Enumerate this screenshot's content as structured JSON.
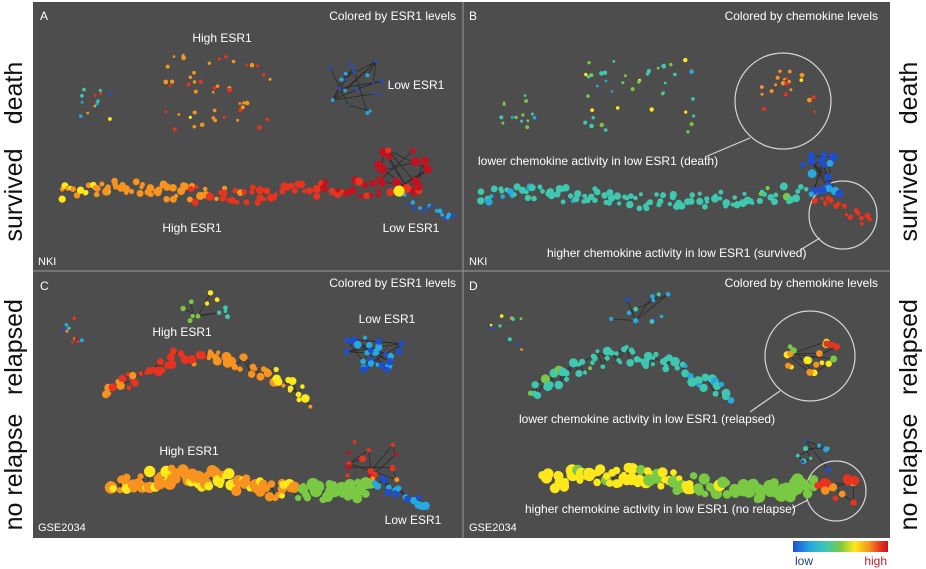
{
  "panels": [
    {
      "letter": "A",
      "caption": "Colored by ESR1 levels",
      "annotations": [
        "High ESR1",
        "Low ESR1",
        "High ESR1",
        "Low ESR1"
      ],
      "dataset": "NKI"
    },
    {
      "letter": "B",
      "caption": "Colored by chemokine levels",
      "annotations": [
        "lower chemokine activity in low ESR1 (death)",
        "higher chemokine activity in low ESR1 (survived)"
      ],
      "dataset": "NKI"
    },
    {
      "letter": "C",
      "caption": "Colored by ESR1 levels",
      "annotations": [
        "High ESR1",
        "Low ESR1",
        "High ESR1",
        "Low ESR1"
      ],
      "dataset": "GSE2034"
    },
    {
      "letter": "D",
      "caption": "Colored by chemokine levels",
      "annotations": [
        "lower chemokine activity in low ESR1 (relapsed)",
        "higher chemokine activity in low ESR1 (no relapse)"
      ],
      "dataset": "GSE2034"
    }
  ],
  "row_labels": {
    "left": [
      "death",
      "survived",
      "relapsed",
      "no relapse"
    ],
    "right": [
      "death",
      "survived",
      "relapsed",
      "no relapse"
    ]
  },
  "legend": {
    "low": "low",
    "high": "high"
  },
  "colors": {
    "panel_bg": "#4d4d4d",
    "divider": "#9a9a9a",
    "scale": [
      "#1f4fd0",
      "#26a8e0",
      "#3fc8b0",
      "#7ac943",
      "#ffe81a",
      "#f7931e",
      "#e8331f",
      "#c1131f"
    ]
  }
}
